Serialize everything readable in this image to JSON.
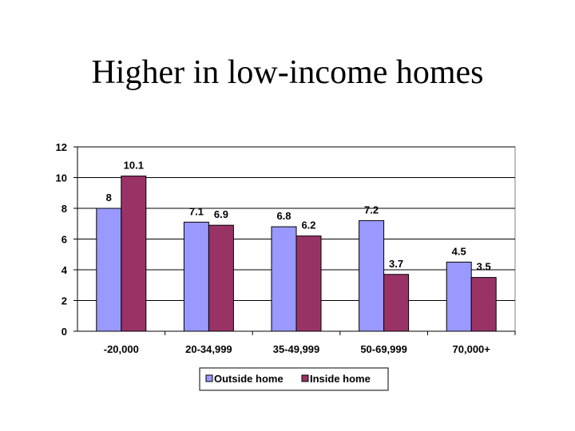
{
  "slide": {
    "title": "Higher in low-income homes"
  },
  "chart_data": {
    "type": "bar",
    "categories": [
      "-20,000",
      "20-34,999",
      "35-49,999",
      "50-69,999",
      "70,000+"
    ],
    "series": [
      {
        "name": "Outside home",
        "values": [
          8,
          7.1,
          6.8,
          7.2,
          4.5
        ],
        "color": "#9999ff"
      },
      {
        "name": "Inside home",
        "values": [
          10.1,
          6.9,
          6.2,
          3.7,
          3.5
        ],
        "color": "#993366"
      }
    ],
    "data_labels": [
      [
        "8",
        "7.1",
        "6.8",
        "7.2",
        "4.5"
      ],
      [
        "10.1",
        "6.9",
        "6.2",
        "3.7",
        "3.5"
      ]
    ],
    "title": "",
    "xlabel": "",
    "ylabel": "",
    "ylim": [
      0,
      12
    ],
    "yticks": [
      0,
      2,
      4,
      6,
      8,
      10,
      12
    ],
    "grid": true,
    "legend_position": "bottom",
    "plot_background": "#ffffff",
    "gridline_color": "#000000"
  }
}
